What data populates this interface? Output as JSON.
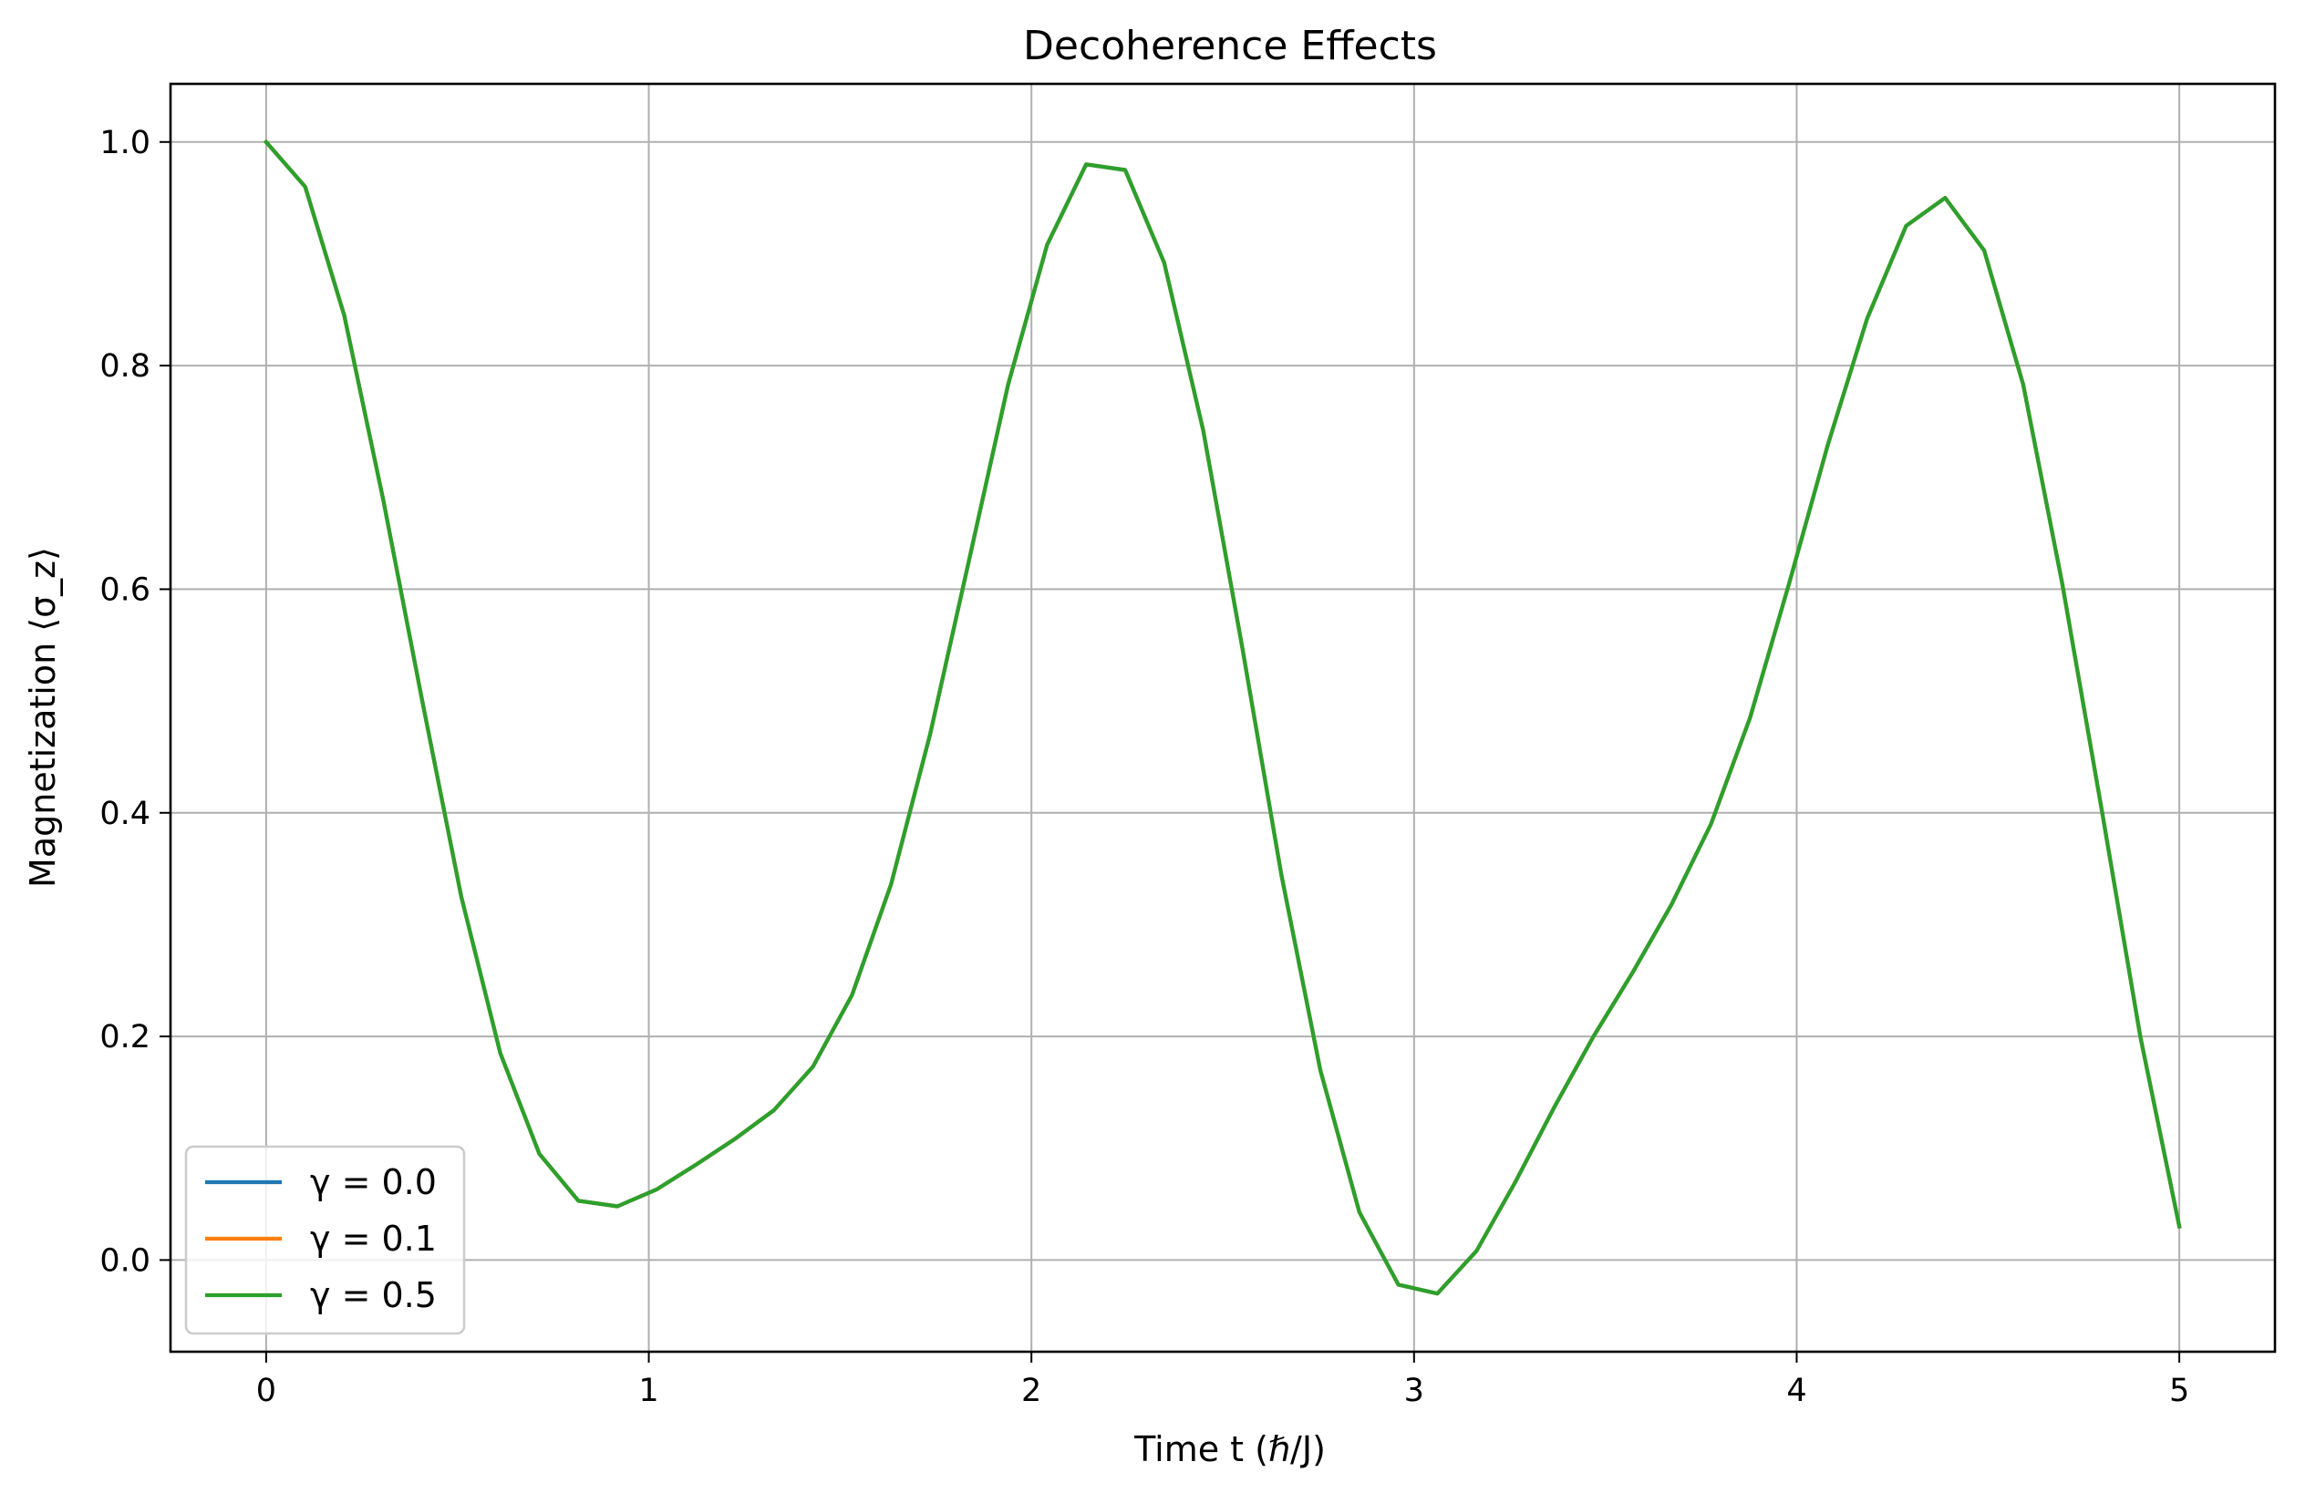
{
  "chart_data": {
    "type": "line",
    "title": "Decoherence Effects",
    "xlabel": "Time t (ℏ/J)",
    "ylabel": "Magnetization ⟨σ_z⟩",
    "xlim": [
      -0.25,
      5.25
    ],
    "ylim": [
      -0.082,
      1.052
    ],
    "xticks": [
      0,
      1,
      2,
      3,
      4,
      5
    ],
    "xtick_labels": [
      "0",
      "1",
      "2",
      "3",
      "4",
      "5"
    ],
    "yticks": [
      0.0,
      0.2,
      0.4,
      0.6,
      0.8,
      1.0
    ],
    "ytick_labels": [
      "0.0",
      "0.2",
      "0.4",
      "0.6",
      "0.8",
      "1.0"
    ],
    "grid": true,
    "legend_position": "lower-left",
    "x": [
      0.0,
      0.102,
      0.204,
      0.306,
      0.408,
      0.51,
      0.612,
      0.714,
      0.816,
      0.918,
      1.02,
      1.122,
      1.224,
      1.327,
      1.429,
      1.531,
      1.633,
      1.735,
      1.837,
      1.939,
      2.041,
      2.143,
      2.245,
      2.347,
      2.449,
      2.551,
      2.653,
      2.755,
      2.857,
      2.959,
      3.061,
      3.163,
      3.265,
      3.367,
      3.469,
      3.571,
      3.673,
      3.776,
      3.878,
      3.98,
      4.082,
      4.184,
      4.286,
      4.388,
      4.49,
      4.592,
      4.694,
      4.796,
      4.898,
      5.0
    ],
    "series": [
      {
        "name": "γ = 0.0",
        "color": "#1f77b4",
        "values": [
          1.0,
          0.96,
          0.845,
          0.68,
          0.5,
          0.325,
          0.185,
          0.095,
          0.053,
          0.048,
          0.063,
          0.085,
          0.108,
          0.134,
          0.173,
          0.237,
          0.336,
          0.47,
          0.626,
          0.783,
          0.908,
          0.98,
          0.975,
          0.892,
          0.742,
          0.548,
          0.345,
          0.17,
          0.043,
          -0.022,
          -0.03,
          0.008,
          0.07,
          0.137,
          0.2,
          0.257,
          0.318,
          0.39,
          0.485,
          0.605,
          0.73,
          0.842,
          0.925,
          0.95,
          0.903,
          0.783,
          0.605,
          0.405,
          0.2,
          0.03
        ]
      },
      {
        "name": "γ = 0.1",
        "color": "#ff7f0e",
        "values": [
          1.0,
          0.96,
          0.845,
          0.68,
          0.5,
          0.325,
          0.185,
          0.095,
          0.053,
          0.048,
          0.063,
          0.085,
          0.108,
          0.134,
          0.173,
          0.237,
          0.336,
          0.47,
          0.626,
          0.783,
          0.908,
          0.98,
          0.975,
          0.892,
          0.742,
          0.548,
          0.345,
          0.17,
          0.043,
          -0.022,
          -0.03,
          0.008,
          0.07,
          0.137,
          0.2,
          0.257,
          0.318,
          0.39,
          0.485,
          0.605,
          0.73,
          0.842,
          0.925,
          0.95,
          0.903,
          0.783,
          0.605,
          0.405,
          0.2,
          0.03
        ]
      },
      {
        "name": "γ = 0.5",
        "color": "#2ca02c",
        "values": [
          1.0,
          0.96,
          0.845,
          0.68,
          0.5,
          0.325,
          0.185,
          0.095,
          0.053,
          0.048,
          0.063,
          0.085,
          0.108,
          0.134,
          0.173,
          0.237,
          0.336,
          0.47,
          0.626,
          0.783,
          0.908,
          0.98,
          0.975,
          0.892,
          0.742,
          0.548,
          0.345,
          0.17,
          0.043,
          -0.022,
          -0.03,
          0.008,
          0.07,
          0.137,
          0.2,
          0.257,
          0.318,
          0.39,
          0.485,
          0.605,
          0.73,
          0.842,
          0.925,
          0.95,
          0.903,
          0.783,
          0.605,
          0.405,
          0.2,
          0.03
        ]
      }
    ]
  }
}
